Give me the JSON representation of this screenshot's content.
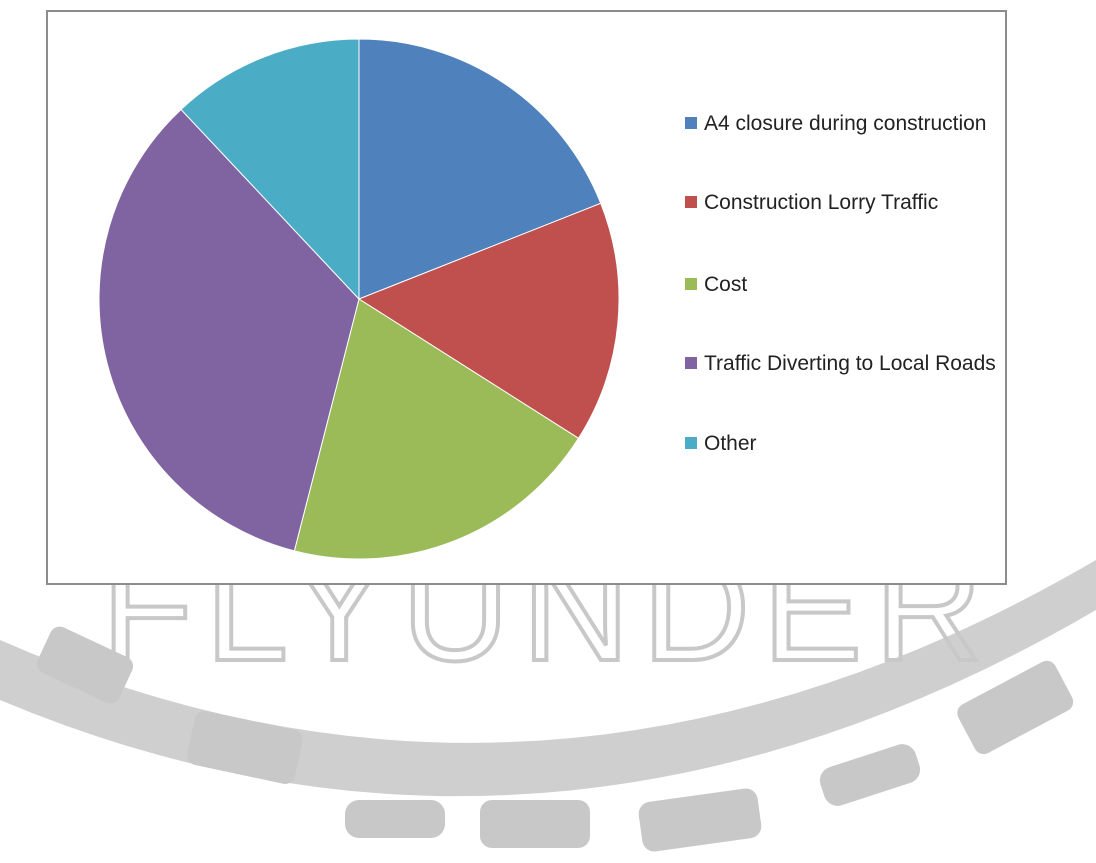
{
  "chart_data": {
    "type": "pie",
    "categories": [
      "A4 closure during construction",
      "Construction Lorry Traffic",
      "Cost",
      "Traffic Diverting to Local Roads",
      "Other"
    ],
    "values": [
      19,
      15,
      20,
      34,
      12
    ],
    "colors": [
      "#4f81bd",
      "#c0504d",
      "#9bbb59",
      "#8064a2",
      "#4bacc6"
    ],
    "legend": "right"
  },
  "watermark": "FLYUNDER"
}
